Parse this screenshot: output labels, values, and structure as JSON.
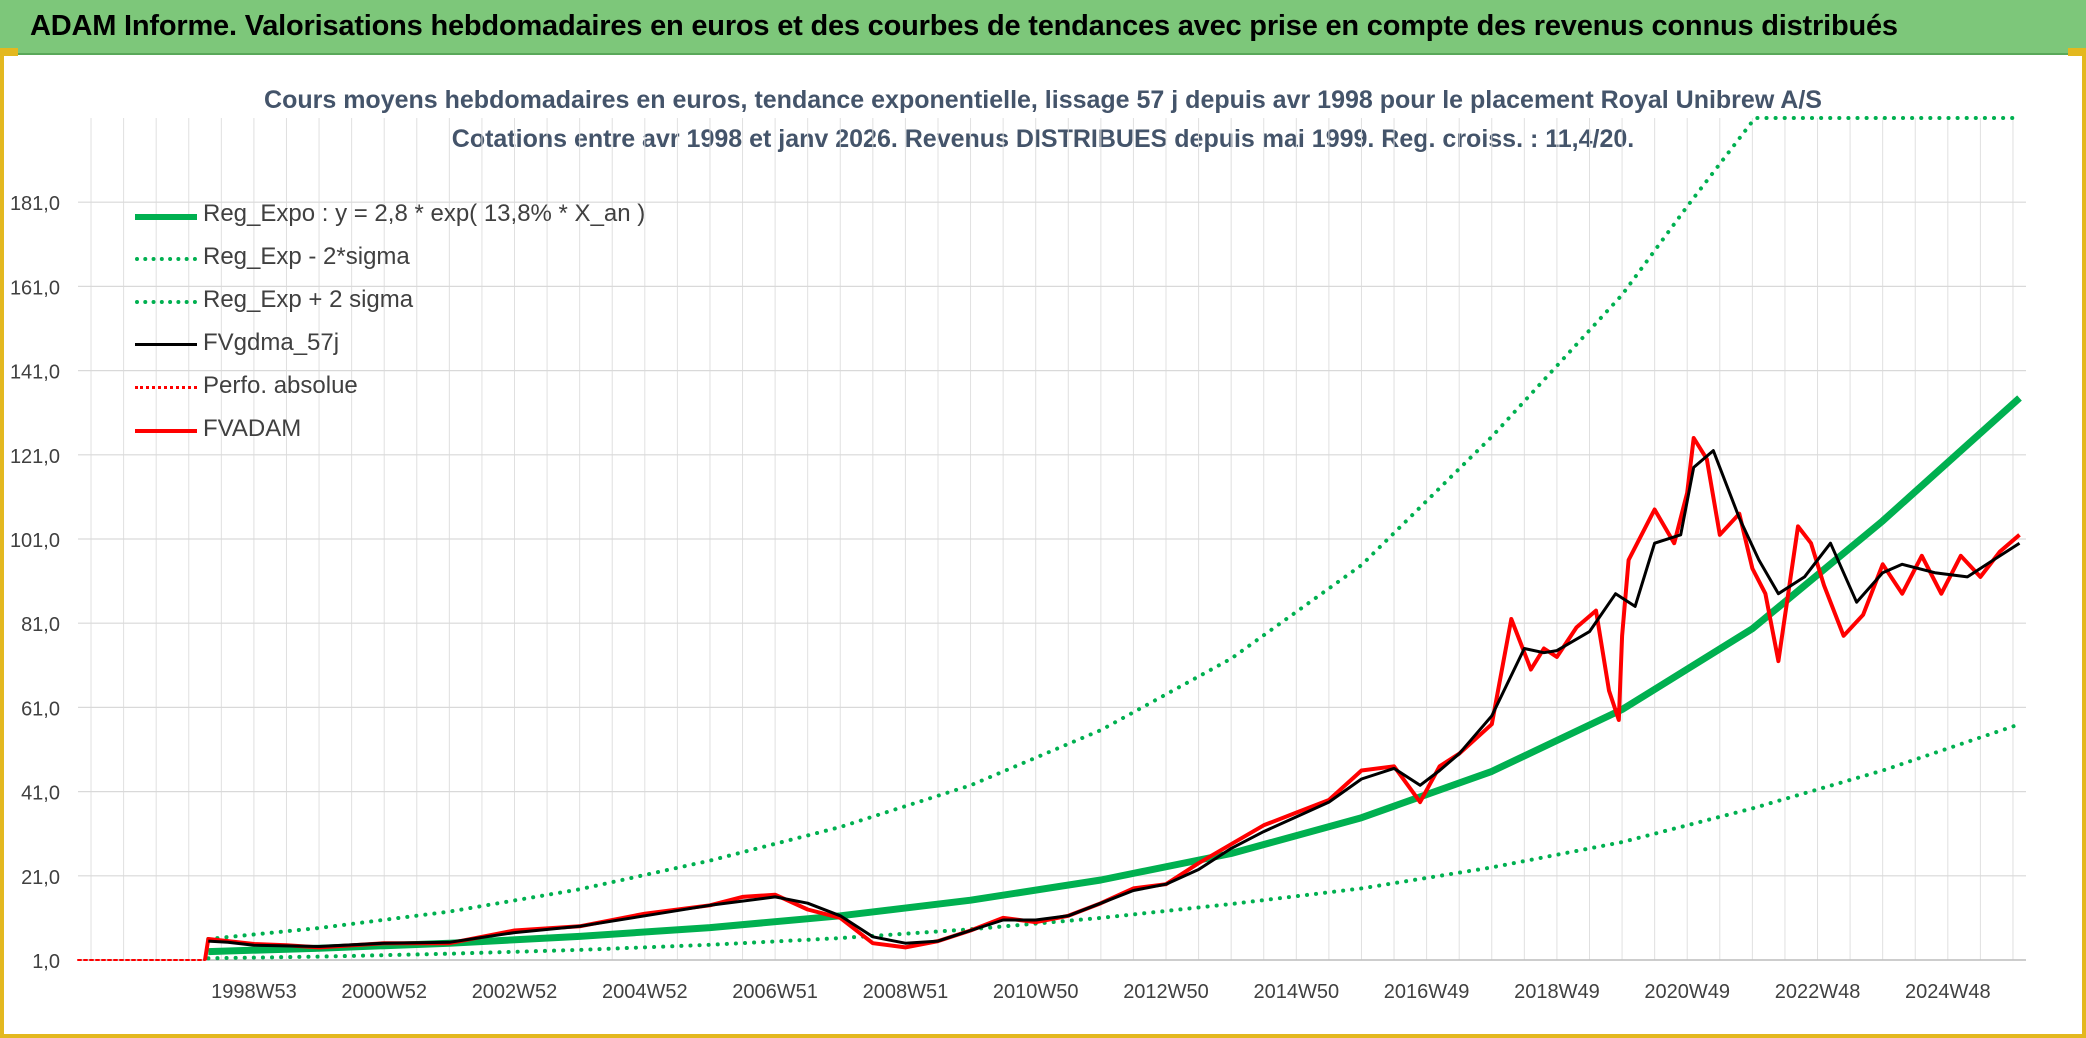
{
  "banner": {
    "title": "ADAM Informe. Valorisations hebdomadaires en euros et des courbes de tendances avec prise en compte des revenus connus distribués"
  },
  "chart_data": {
    "type": "line",
    "title": "Cours moyens hebdomadaires en euros, tendance exponentielle, lissage 57 j depuis avr 1998 pour le placement Royal Unibrew A/S",
    "subtitle": "Cotations entre avr 1998 et janv 2026. Revenus DISTRIBUES depuis mai 1999. Reg. croiss. : 11,4/20.",
    "xlabel": "",
    "ylabel": "",
    "x_range": [
      1996.3,
      2026.2
    ],
    "ylim": [
      1.0,
      201.0
    ],
    "y_ticks": [
      1.0,
      21.0,
      41.0,
      61.0,
      81.0,
      101.0,
      121.0,
      141.0,
      161.0,
      181.0
    ],
    "y_tick_labels": [
      "1,0",
      "21,0",
      "41,0",
      "61,0",
      "81,0",
      "101,0",
      "121,0",
      "141,0",
      "161,0",
      "181,0"
    ],
    "x_ticks": [
      {
        "x": 1999.0,
        "label": "1998W53"
      },
      {
        "x": 2001.0,
        "label": "2000W52"
      },
      {
        "x": 2003.0,
        "label": "2002W52"
      },
      {
        "x": 2005.0,
        "label": "2004W52"
      },
      {
        "x": 2007.0,
        "label": "2006W51"
      },
      {
        "x": 2009.0,
        "label": "2008W51"
      },
      {
        "x": 2011.0,
        "label": "2010W50"
      },
      {
        "x": 2013.0,
        "label": "2012W50"
      },
      {
        "x": 2015.0,
        "label": "2014W50"
      },
      {
        "x": 2017.0,
        "label": "2016W49"
      },
      {
        "x": 2019.0,
        "label": "2018W49"
      },
      {
        "x": 2021.0,
        "label": "2020W49"
      },
      {
        "x": 2023.0,
        "label": "2022W48"
      },
      {
        "x": 2025.0,
        "label": "2024W48"
      }
    ],
    "grid": true,
    "legend_position": "top-left",
    "series": [
      {
        "name": "Reg_Expo : y = 2,8 * exp( 13,8% *  X_an )",
        "color": "#00b050",
        "style": "solid",
        "width": 7,
        "x": [
          1998.3,
          2000,
          2002,
          2004,
          2006,
          2008,
          2010,
          2012,
          2014,
          2016,
          2018,
          2020,
          2022,
          2024,
          2026.1
        ],
        "values": [
          3.0,
          3.8,
          5.0,
          6.6,
          8.7,
          11.5,
          15.2,
          20.0,
          26.3,
          34.8,
          45.8,
          60.5,
          79.7,
          105.3,
          134.5
        ]
      },
      {
        "name": "Reg_Exp - 2*sigma",
        "color": "#00b050",
        "style": "dotted",
        "width": 4,
        "x": [
          1998.3,
          2000,
          2002,
          2004,
          2006,
          2008,
          2010,
          2012,
          2014,
          2016,
          2018,
          2020,
          2022,
          2024,
          2026.1
        ],
        "values": [
          1.4,
          1.8,
          2.5,
          3.4,
          4.6,
          6.2,
          8.3,
          11.0,
          14.3,
          18.0,
          23.0,
          29.0,
          37.0,
          46.0,
          57.0
        ]
      },
      {
        "name": "Reg_Exp + 2 sigma",
        "color": "#00b050",
        "style": "dotted",
        "width": 4,
        "x": [
          1998.3,
          2000,
          2002,
          2004,
          2006,
          2008,
          2010,
          2012,
          2014,
          2016,
          2018,
          2020,
          2021,
          2022,
          2022.05,
          2026.1
        ],
        "values": [
          6.0,
          8.6,
          12.5,
          17.8,
          24.6,
          32.6,
          42.5,
          55.6,
          72.6,
          94.8,
          125.3,
          159.0,
          180.0,
          200.2,
          201.0,
          201.0
        ]
      },
      {
        "name": "FVgdma_57j",
        "color": "#000000",
        "style": "solid",
        "width": 3,
        "x": [
          1998.3,
          1998.6,
          1999,
          2000,
          2001,
          2002,
          2003,
          2004,
          2005,
          2006,
          2007,
          2007.5,
          2008,
          2008.5,
          2009,
          2009.5,
          2010,
          2010.5,
          2011,
          2011.5,
          2012,
          2012.5,
          2013,
          2013.5,
          2014,
          2014.5,
          2015,
          2015.5,
          2016,
          2016.5,
          2016.9,
          2017.2,
          2017.5,
          2018,
          2018.5,
          2018.8,
          2019,
          2019.5,
          2019.9,
          2020.2,
          2020.5,
          2020.9,
          2021.1,
          2021.4,
          2021.8,
          2022.1,
          2022.4,
          2022.8,
          2023.2,
          2023.6,
          2024,
          2024.3,
          2024.8,
          2025.3,
          2025.7,
          2026.1
        ],
        "values": [
          5.5,
          5.2,
          4.5,
          4.2,
          5.0,
          5.2,
          7.5,
          9.0,
          11.5,
          14.0,
          16.0,
          14.5,
          11.5,
          6.5,
          5.0,
          5.5,
          8.0,
          10.5,
          10.5,
          11.5,
          14.5,
          17.5,
          19.0,
          22.5,
          27.5,
          31.5,
          35.0,
          38.5,
          44.0,
          46.5,
          42.5,
          46.0,
          50.0,
          59.0,
          75.0,
          74.0,
          74.5,
          79.0,
          88.0,
          85.0,
          100.0,
          102.0,
          118.0,
          122.0,
          106.0,
          96.0,
          88.0,
          92.0,
          100.0,
          86.0,
          93.0,
          95.0,
          93.0,
          92.0,
          96.0,
          100.0
        ]
      },
      {
        "name": "Perfo. absolue",
        "color": "#ff0000",
        "style": "dotted",
        "width": 2,
        "x": [
          1996.3,
          1998.25
        ],
        "values": [
          1.0,
          1.0
        ]
      },
      {
        "name": "FVADAM",
        "color": "#ff0000",
        "style": "solid",
        "width": 4,
        "x": [
          1998.25,
          1998.3,
          1998.6,
          1999,
          1999.5,
          2000,
          2001,
          2002,
          2003,
          2004,
          2005,
          2006,
          2006.5,
          2007,
          2007.5,
          2008,
          2008.5,
          2009,
          2009.5,
          2010,
          2010.5,
          2011,
          2011.5,
          2012,
          2012.5,
          2013,
          2013.5,
          2014,
          2014.5,
          2015,
          2015.5,
          2016,
          2016.5,
          2016.9,
          2017.2,
          2017.5,
          2018,
          2018.3,
          2018.6,
          2018.8,
          2019,
          2019.3,
          2019.6,
          2019.8,
          2019.95,
          2020.0,
          2020.1,
          2020.5,
          2020.8,
          2021.0,
          2021.1,
          2021.3,
          2021.5,
          2021.8,
          2022.0,
          2022.2,
          2022.4,
          2022.7,
          2022.9,
          2023.1,
          2023.4,
          2023.7,
          2024.0,
          2024.3,
          2024.6,
          2024.9,
          2025.2,
          2025.5,
          2025.8,
          2026.1
        ],
        "values": [
          1.0,
          6.0,
          5.5,
          4.8,
          4.5,
          4.0,
          5.0,
          5.0,
          8.0,
          9.0,
          12.0,
          14.0,
          16.0,
          16.5,
          13.0,
          11.0,
          5.0,
          4.0,
          5.5,
          8.0,
          11.0,
          10.0,
          11.5,
          14.5,
          18.0,
          19.0,
          24.0,
          28.5,
          33.0,
          36.0,
          39.0,
          46.0,
          47.0,
          38.5,
          47.0,
          50.0,
          57.0,
          82.0,
          70.0,
          75.0,
          73.0,
          80.0,
          84.0,
          65.0,
          58.0,
          78.0,
          96.0,
          108.0,
          100.0,
          112.0,
          125.0,
          120.0,
          102.0,
          107.0,
          94.0,
          88.0,
          72.0,
          104.0,
          100.0,
          90.0,
          78.0,
          83.0,
          95.0,
          88.0,
          97.0,
          88.0,
          97.0,
          92.0,
          98.0,
          102.0
        ]
      }
    ]
  }
}
